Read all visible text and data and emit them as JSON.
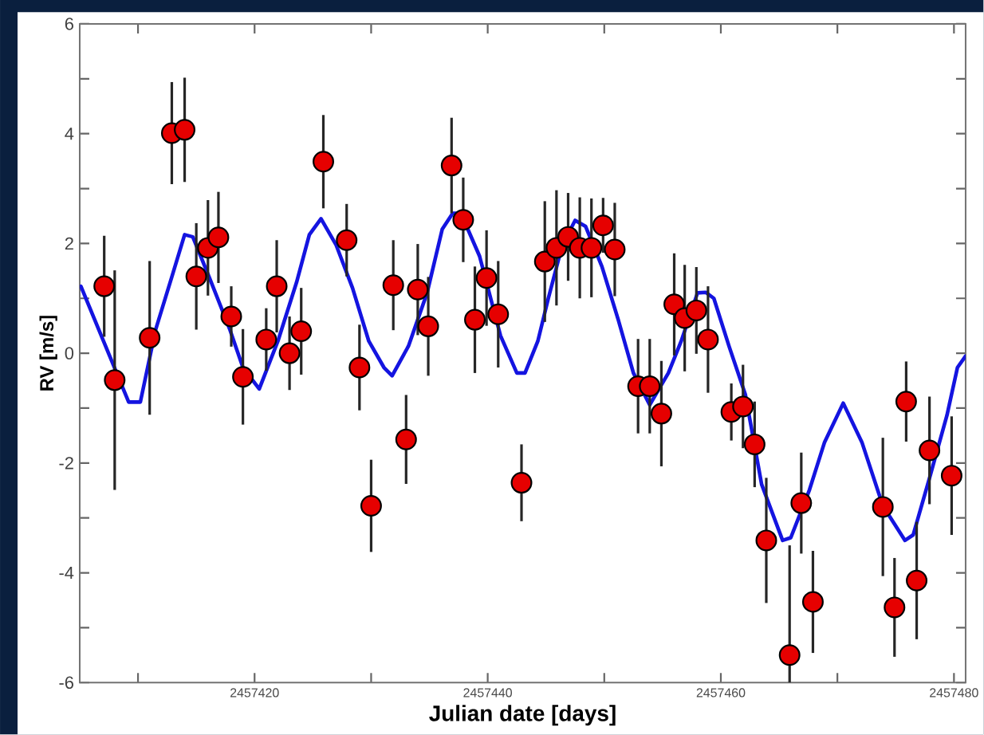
{
  "chart_data": {
    "type": "scatter",
    "xlabel": "Julian date [days]",
    "ylabel": "RV [m/s]",
    "xlim": [
      2457405,
      2457481
    ],
    "ylim": [
      -6,
      6
    ],
    "xticks": [
      {
        "value": 2457410,
        "label": null
      },
      2457420,
      {
        "value": 2457430,
        "label": null
      },
      2457440,
      {
        "value": 2457450,
        "label": null
      },
      2457460,
      {
        "value": 2457470,
        "label": null
      },
      2457480
    ],
    "yticks": [
      -6,
      {
        "value": -5,
        "label": null
      },
      -4,
      {
        "value": -3,
        "label": null
      },
      -2,
      {
        "value": -1,
        "label": null
      },
      0,
      {
        "value": 1,
        "label": null
      },
      2,
      {
        "value": 3,
        "label": null
      },
      4,
      {
        "value": 5,
        "label": null
      },
      6
    ],
    "series": [
      {
        "type": "line",
        "color": "#1414e0",
        "marker": "none",
        "x": [
          2457405.1,
          2457409.2,
          2457410.2,
          2457411.5,
          2457412.9,
          2457414.0,
          2457414.7,
          2457416.1,
          2457417.9,
          2457419.0,
          2457420.4,
          2457422.0,
          2457423.6,
          2457424.7,
          2457425.7,
          2457427.0,
          2457428.4,
          2457429.8,
          2457431.1,
          2457431.8,
          2457433.2,
          2457434.8,
          2457436.1,
          2457437.0,
          2457437.7,
          2457439.3,
          2457441.1,
          2457442.5,
          2457443.2,
          2457444.3,
          2457445.2,
          2457446.4,
          2457447.5,
          2457448.4,
          2457449.8,
          2457451.2,
          2457452.5,
          2457453.9,
          2457455.5,
          2457456.6,
          2457458.0,
          2457458.7,
          2457459.4,
          2457460.7,
          2457462.1,
          2457463.5,
          2457465.3,
          2457466.0,
          2457467.6,
          2457468.9,
          2457470.5,
          2457472.1,
          2457473.9,
          2457475.8,
          2457476.5,
          2457478.0,
          2457479.4,
          2457480.3,
          2457481.0
        ],
        "values": [
          1.22,
          -0.89,
          -0.89,
          0.42,
          1.39,
          2.16,
          2.12,
          1.39,
          0.42,
          -0.26,
          -0.65,
          0.22,
          1.29,
          2.16,
          2.45,
          1.97,
          1.19,
          0.22,
          -0.26,
          -0.41,
          0.13,
          1.1,
          2.26,
          2.55,
          2.55,
          1.77,
          0.32,
          -0.36,
          -0.36,
          0.22,
          1.0,
          1.97,
          2.42,
          2.31,
          1.58,
          0.61,
          -0.36,
          -0.94,
          -0.36,
          0.22,
          1.1,
          1.11,
          1.0,
          0.13,
          -0.75,
          -2.39,
          -3.41,
          -3.36,
          -2.49,
          -1.62,
          -0.91,
          -1.62,
          -2.78,
          -3.41,
          -3.31,
          -2.2,
          -1.13,
          -0.26,
          -0.05
        ]
      },
      {
        "color": "#e60000",
        "marker": "circle",
        "x": [
          2457407.1,
          2457408.0,
          2457411.0,
          2457412.9,
          2457414.0,
          2457415.0,
          2457416.0,
          2457416.9,
          2457418.0,
          2457419.0,
          2457421.0,
          2457421.9,
          2457423.0,
          2457424.0,
          2457425.9,
          2457427.9,
          2457429.0,
          2457430.0,
          2457431.9,
          2457433.0,
          2457434.0,
          2457434.9,
          2457436.9,
          2457437.9,
          2457438.9,
          2457439.9,
          2457440.9,
          2457442.9,
          2457444.9,
          2457445.9,
          2457446.9,
          2457447.9,
          2457448.9,
          2457449.9,
          2457450.9,
          2457452.9,
          2457453.9,
          2457454.9,
          2457456.0,
          2457456.9,
          2457457.9,
          2457458.9,
          2457460.9,
          2457461.9,
          2457462.9,
          2457463.9,
          2457465.9,
          2457466.9,
          2457467.9,
          2457473.9,
          2457474.9,
          2457475.9,
          2457476.8,
          2457477.9,
          2457479.8
        ],
        "values": [
          1.22,
          -0.49,
          0.28,
          4.01,
          4.07,
          1.4,
          1.92,
          2.11,
          0.67,
          -0.43,
          0.25,
          1.22,
          0.0,
          0.4,
          3.49,
          2.06,
          -0.26,
          -2.78,
          1.24,
          -1.57,
          1.16,
          0.49,
          3.42,
          2.43,
          0.61,
          1.37,
          0.71,
          -2.36,
          1.67,
          1.92,
          2.12,
          1.92,
          1.92,
          2.33,
          1.89,
          -0.6,
          -0.6,
          -1.1,
          0.89,
          0.64,
          0.78,
          0.25,
          -1.07,
          -0.97,
          -1.66,
          -3.41,
          -5.5,
          -2.73,
          -4.53,
          -2.8,
          -4.63,
          -0.88,
          -4.14,
          -1.77,
          -2.23
        ],
        "errors": [
          0.92,
          2.0,
          1.4,
          0.93,
          0.95,
          0.97,
          0.87,
          0.83,
          0.55,
          0.87,
          0.57,
          0.84,
          0.67,
          0.79,
          0.85,
          0.66,
          0.78,
          0.84,
          0.82,
          0.81,
          0.83,
          0.9,
          0.87,
          0.77,
          0.97,
          0.87,
          0.97,
          0.7,
          1.1,
          1.05,
          0.8,
          0.92,
          0.9,
          0.5,
          0.85,
          0.86,
          0.86,
          0.96,
          0.93,
          0.97,
          0.79,
          0.97,
          0.52,
          0.76,
          0.78,
          1.14,
          [
            -6,
            -3.5
          ],
          0.92,
          0.93,
          1.26,
          0.9,
          0.73,
          1.07,
          0.98,
          1.08
        ]
      }
    ]
  }
}
